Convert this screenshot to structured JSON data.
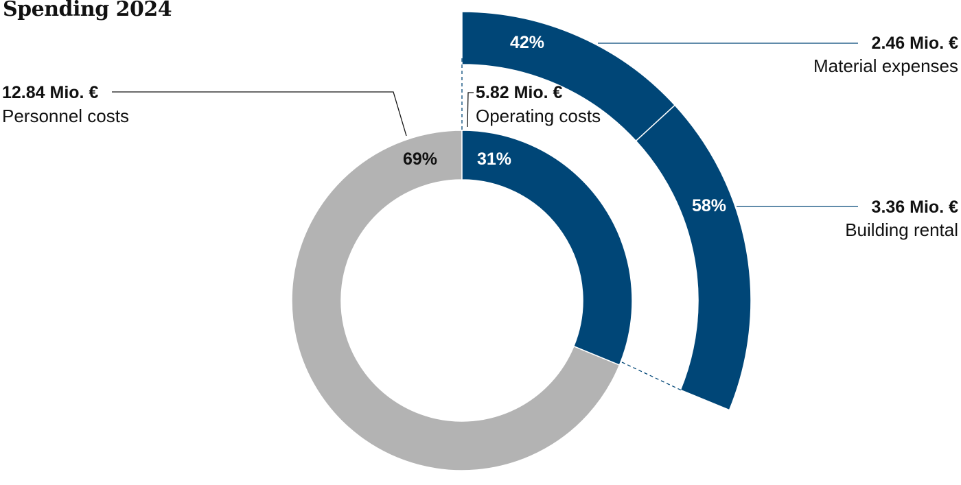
{
  "title": "Spending 2024",
  "chart_data": {
    "type": "pie",
    "title": "Spending 2024",
    "unit": "Mio. €",
    "inner": [
      {
        "id": "personnel",
        "label": "Personnel costs",
        "amount": "12.84 Mio. €",
        "value": 12.84,
        "percent": "69%",
        "color": "#b3b3b3",
        "pct_color": "#111111"
      },
      {
        "id": "operating",
        "label": "Operating costs",
        "amount": "5.82 Mio. €",
        "value": 5.82,
        "percent": "31%",
        "color": "#004677",
        "pct_color": "#ffffff"
      }
    ],
    "outer": {
      "parent": "operating",
      "slices": [
        {
          "id": "material",
          "label": "Material expenses",
          "amount": "2.46 Mio. €",
          "value": 2.46,
          "percent": "42%",
          "color": "#004677",
          "pct_color": "#ffffff"
        },
        {
          "id": "rental",
          "label": "Building rental",
          "amount": "3.36 Mio. €",
          "value": 3.36,
          "percent": "58%",
          "color": "#004677",
          "pct_color": "#ffffff"
        }
      ]
    },
    "legend": "none"
  }
}
